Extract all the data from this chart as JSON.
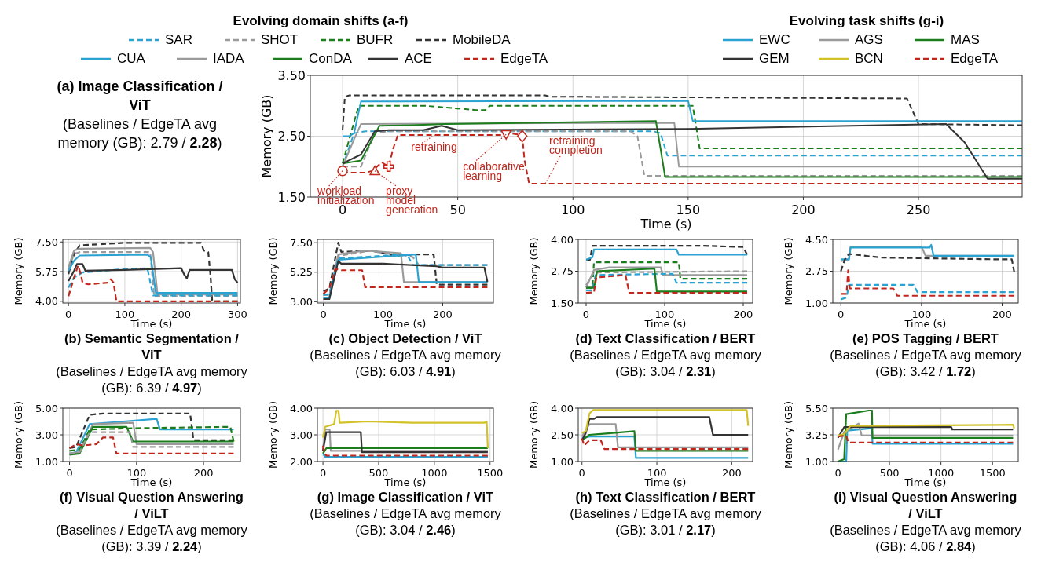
{
  "chart_data": [
    {
      "type": "line",
      "title": "(a) Image Classification / ViT",
      "subtitle": "(Baselines / EdgeTA avg memory (GB): 2.79 / 2.28)",
      "xlabel": "Time (s)",
      "ylabel": "Memory (GB)",
      "legend": "top",
      "legend_title": "Evolving domain shifts (a-f)",
      "grid": true,
      "xlim": [
        -14,
        295
      ],
      "xticks": [
        0,
        50,
        100,
        150,
        200,
        250
      ],
      "ylim": [
        1.5,
        3.5
      ],
      "yticks": [
        {
          "value": 1.5,
          "label": "1.50"
        },
        {
          "value": 2.5,
          "label": "2.50"
        },
        {
          "value": 3.5,
          "label": "3.50"
        }
      ],
      "series": [
        {
          "name": "SAR",
          "color": "#2aa3d2",
          "line_style": "dashed",
          "x": [
            0,
            5,
            10,
            135,
            138,
            141,
            295
          ],
          "values": [
            2.0,
            2.55,
            2.58,
            2.58,
            2.55,
            2.18,
            2.18
          ]
        },
        {
          "name": "SHOT",
          "color": "#9a9a9a",
          "line_style": "dashed",
          "x": [
            0,
            8,
            14,
            20,
            125,
            128,
            131,
            295
          ],
          "values": [
            2.0,
            2.0,
            2.55,
            2.58,
            2.58,
            2.5,
            1.85,
            1.85
          ]
        },
        {
          "name": "BUFR",
          "color": "#1b7d1b",
          "line_style": "dashed",
          "x": [
            0,
            4,
            7,
            36,
            58,
            62,
            64,
            152,
            155,
            295
          ],
          "values": [
            2.05,
            2.6,
            3.0,
            3.0,
            2.93,
            2.93,
            3.0,
            3.0,
            2.3,
            2.3
          ]
        },
        {
          "name": "MobileDA",
          "color": "#333333",
          "line_style": "dashed",
          "x": [
            0,
            1,
            3,
            88,
            90,
            245,
            250,
            295
          ],
          "values": [
            2.6,
            3.15,
            3.17,
            3.17,
            3.15,
            3.12,
            2.7,
            2.68
          ]
        },
        {
          "name": "CUA",
          "color": "#2aa3d2",
          "line_style": "solid",
          "x": [
            0,
            3,
            5,
            8,
            150,
            152,
            295
          ],
          "values": [
            2.5,
            2.5,
            2.55,
            3.07,
            3.08,
            2.75,
            2.75
          ]
        },
        {
          "name": "IADA",
          "color": "#9a9a9a",
          "line_style": "solid",
          "x": [
            0,
            5,
            8,
            144,
            146,
            295
          ],
          "values": [
            2.0,
            2.45,
            2.7,
            2.72,
            2.0,
            2.0
          ]
        },
        {
          "name": "ConDA",
          "color": "#1b7d1b",
          "line_style": "solid",
          "x": [
            0,
            8,
            16,
            30,
            45,
            136,
            138,
            140,
            295
          ],
          "values": [
            2.05,
            2.1,
            2.67,
            2.68,
            2.7,
            2.75,
            2.3,
            1.83,
            1.83
          ]
        },
        {
          "name": "ACE",
          "color": "#333333",
          "line_style": "solid",
          "x": [
            0,
            8,
            14,
            20,
            35,
            43,
            50,
            150,
            262,
            270,
            280,
            295
          ],
          "values": [
            2.05,
            2.2,
            2.58,
            2.6,
            2.6,
            2.67,
            2.6,
            2.62,
            2.7,
            2.4,
            1.8,
            1.8
          ]
        },
        {
          "name": "EdgeTA",
          "color": "#c0261c",
          "line_style": "dashed",
          "x": [
            0,
            2,
            10,
            13,
            15,
            17,
            19,
            20,
            22,
            24,
            70,
            72,
            76,
            78,
            79,
            81,
            295
          ],
          "values": [
            1.93,
            1.9,
            1.9,
            1.93,
            2.0,
            2.07,
            2.02,
            2.0,
            2.3,
            2.52,
            2.52,
            2.55,
            2.53,
            2.5,
            2.1,
            1.72,
            1.72
          ]
        },
        {
          "type": "scatter",
          "color": "#c0261c",
          "x": [
            0,
            14,
            20,
            71,
            78
          ],
          "values": [
            1.93,
            1.93,
            2.0,
            2.53,
            2.5
          ]
        }
      ],
      "annotations": [
        {
          "text": "workload initialization",
          "x": 0,
          "y": 1.93
        },
        {
          "text": "proxy model generation",
          "x": 14,
          "y": 1.93
        },
        {
          "text": "retraining",
          "x": 40,
          "y": 2.52
        },
        {
          "text": "collaborative learning",
          "x": 71,
          "y": 2.53
        },
        {
          "text": "retraining completion",
          "x": 88,
          "y": 1.72
        }
      ]
    },
    {
      "type": "line",
      "title": "(b) Semantic Segmentation / ViT",
      "subtitle": "(Baselines / EdgeTA avg memory (GB): 6.39 / 4.97)",
      "xlabel": "Time (s)",
      "ylabel": "Memory (GB)",
      "grid": true,
      "xlim": [
        -10,
        305
      ],
      "xticks": [
        0,
        100,
        200,
        300
      ],
      "ylim": [
        3.9,
        7.65
      ],
      "yticks": [
        {
          "value": 4,
          "label": "4.00"
        },
        {
          "value": 5.75,
          "label": "5.75"
        },
        {
          "value": 7.5,
          "label": "7.50"
        }
      ],
      "series": [
        {
          "color": "#333333",
          "line_style": "dashed",
          "x": [
            0,
            10,
            20,
            100,
            235,
            240,
            248,
            252,
            255,
            300
          ],
          "values": [
            5.6,
            6.8,
            7.3,
            7.45,
            7.45,
            7.0,
            6.9,
            5.5,
            4.0,
            4.0
          ]
        },
        {
          "color": "#9a9a9a",
          "line_style": "solid",
          "x": [
            0,
            10,
            20,
            145,
            150,
            158,
            300
          ],
          "values": [
            6.0,
            7.0,
            7.1,
            7.15,
            6.9,
            4.4,
            4.4
          ]
        },
        {
          "color": "#9a9a9a",
          "line_style": "dashed",
          "x": [
            0,
            10,
            20,
            145,
            152,
            300
          ],
          "values": [
            5.9,
            6.8,
            6.9,
            6.9,
            4.3,
            4.3
          ]
        },
        {
          "color": "#2aa3d2",
          "line_style": "solid",
          "x": [
            0,
            10,
            20,
            140,
            146,
            155,
            300
          ],
          "values": [
            5.8,
            6.4,
            6.7,
            6.75,
            6.6,
            4.5,
            4.5
          ]
        },
        {
          "color": "#2aa3d2",
          "line_style": "dashed",
          "x": [
            0,
            10,
            25,
            100,
            140,
            150,
            300
          ],
          "values": [
            4.8,
            5.4,
            5.7,
            5.9,
            5.95,
            4.35,
            4.35
          ]
        },
        {
          "color": "#333333",
          "line_style": "solid",
          "x": [
            0,
            10,
            15,
            25,
            30,
            100,
            200,
            205,
            210,
            215,
            290,
            295,
            300
          ],
          "values": [
            5.2,
            5.8,
            6.2,
            6.2,
            5.8,
            5.85,
            5.95,
            5.6,
            5.35,
            5.85,
            5.85,
            5.3,
            5.1
          ]
        },
        {
          "color": "#c0261c",
          "line_style": "dashed",
          "x": [
            0,
            10,
            17,
            22,
            25,
            35,
            70,
            75,
            80,
            85,
            300
          ],
          "values": [
            4.3,
            5.4,
            6.1,
            5.6,
            5.1,
            5.0,
            5.1,
            5.3,
            5.1,
            4.0,
            4.0
          ]
        }
      ]
    },
    {
      "type": "line",
      "title": "(c) Object Detection / ViT",
      "subtitle": "(Baselines / EdgeTA avg memory (GB): 6.03 / 4.91)",
      "xlabel": "Time (s)",
      "ylabel": "Memory (GB)",
      "grid": true,
      "xlim": [
        -10,
        285
      ],
      "xticks": [
        0,
        100,
        200
      ],
      "ylim": [
        2.9,
        7.75
      ],
      "yticks": [
        {
          "value": 3,
          "label": "3.00"
        },
        {
          "value": 5.25,
          "label": "5.25"
        },
        {
          "value": 7.5,
          "label": "7.50"
        }
      ],
      "series": [
        {
          "color": "#333333",
          "line_style": "dashed",
          "x": [
            0,
            10,
            25,
            30,
            80,
            120,
            150,
            185,
            190,
            275
          ],
          "values": [
            3.8,
            4.0,
            7.5,
            6.8,
            6.9,
            6.5,
            6.6,
            6.6,
            4.3,
            4.3
          ]
        },
        {
          "color": "#9a9a9a",
          "line_style": "dashed",
          "x": [
            0,
            10,
            25,
            40,
            80,
            100,
            130,
            150,
            160,
            275
          ],
          "values": [
            3.5,
            3.5,
            6.5,
            6.6,
            6.9,
            6.7,
            6.6,
            6.4,
            5.8,
            5.8
          ]
        },
        {
          "color": "#9a9a9a",
          "line_style": "solid",
          "x": [
            0,
            10,
            25,
            70,
            130,
            135,
            275
          ],
          "values": [
            3.2,
            3.2,
            6.6,
            6.9,
            6.7,
            4.5,
            4.5
          ]
        },
        {
          "color": "#2aa3d2",
          "line_style": "dashed",
          "x": [
            0,
            10,
            25,
            140,
            150,
            275
          ],
          "values": [
            3.5,
            3.6,
            6.3,
            6.6,
            5.8,
            5.8
          ]
        },
        {
          "color": "#2aa3d2",
          "line_style": "solid",
          "x": [
            0,
            10,
            25,
            155,
            160,
            275
          ],
          "values": [
            3.3,
            3.3,
            6.2,
            6.6,
            4.5,
            4.5
          ]
        },
        {
          "color": "#333333",
          "line_style": "solid",
          "x": [
            0,
            10,
            25,
            30,
            100,
            190,
            200,
            270,
            275
          ],
          "values": [
            3.2,
            3.2,
            6.1,
            5.9,
            5.9,
            5.7,
            5.6,
            5.6,
            4.5
          ]
        },
        {
          "color": "#c0261c",
          "line_style": "dashed",
          "x": [
            0,
            10,
            20,
            30,
            65,
            70,
            275
          ],
          "values": [
            3.6,
            4.0,
            5.5,
            5.4,
            5.4,
            4.1,
            4.1
          ]
        }
      ]
    },
    {
      "type": "line",
      "title": "(d) Text Classification / BERT",
      "subtitle": "(Baselines / EdgeTA avg memory (GB): 3.04 / 2.31)",
      "xlabel": "Time (s)",
      "ylabel": "Memory (GB)",
      "grid": true,
      "xlim": [
        -10,
        212
      ],
      "xticks": [
        0,
        100,
        200
      ],
      "ylim": [
        1.5,
        4.0
      ],
      "yticks": [
        {
          "value": 1.5,
          "label": "1.50"
        },
        {
          "value": 2.75,
          "label": "2.75"
        },
        {
          "value": 4,
          "label": "4.00"
        }
      ],
      "series": [
        {
          "color": "#333333",
          "line_style": "dashed",
          "x": [
            0,
            5,
            8,
            150,
            200,
            205
          ],
          "values": [
            3.2,
            3.2,
            3.75,
            3.75,
            3.7,
            3.4
          ]
        },
        {
          "color": "#2aa3d2",
          "line_style": "solid",
          "x": [
            0,
            8,
            10,
            115,
            118,
            205
          ],
          "values": [
            3.2,
            3.3,
            3.6,
            3.6,
            3.4,
            3.4
          ]
        },
        {
          "color": "#1b7d1b",
          "line_style": "dashed",
          "x": [
            0,
            8,
            10,
            118,
            120,
            205
          ],
          "values": [
            2.1,
            2.1,
            3.1,
            3.1,
            2.45,
            2.45
          ]
        },
        {
          "color": "#9a9a9a",
          "line_style": "dashed",
          "x": [
            0,
            10,
            205
          ],
          "values": [
            2.2,
            2.7,
            2.75
          ]
        },
        {
          "color": "#9a9a9a",
          "line_style": "solid",
          "x": [
            0,
            10,
            30,
            95,
            98,
            205
          ],
          "values": [
            2.1,
            2.8,
            2.9,
            2.9,
            2.6,
            2.6
          ]
        },
        {
          "color": "#2aa3d2",
          "line_style": "dashed",
          "x": [
            0,
            8,
            12,
            110,
            115,
            205
          ],
          "values": [
            2.0,
            2.0,
            2.6,
            2.65,
            2.3,
            2.3
          ]
        },
        {
          "color": "#1b7d1b",
          "line_style": "solid",
          "x": [
            0,
            10,
            14,
            87,
            90,
            205
          ],
          "values": [
            2.1,
            2.1,
            2.75,
            2.85,
            1.95,
            1.95
          ]
        },
        {
          "color": "#c0261c",
          "line_style": "dashed",
          "x": [
            0,
            10,
            13,
            50,
            55,
            205
          ],
          "values": [
            1.9,
            1.92,
            2.5,
            2.6,
            1.9,
            1.9
          ]
        }
      ]
    },
    {
      "type": "line",
      "title": "(e) POS Tagging / BERT",
      "subtitle": "(Baselines / EdgeTA avg memory (GB): 3.42 / 1.72)",
      "xlabel": "Time (s)",
      "ylabel": "Memory (GB)",
      "grid": true,
      "xlim": [
        -10,
        220
      ],
      "xticks": [
        0,
        100,
        200
      ],
      "ylim": [
        1.0,
        4.5
      ],
      "yticks": [
        {
          "value": 1,
          "label": "1.00"
        },
        {
          "value": 2.75,
          "label": "2.75"
        },
        {
          "value": 4.5,
          "label": "4.50"
        }
      ],
      "series": [
        {
          "color": "#9a9a9a",
          "line_style": "solid",
          "x": [
            0,
            10,
            12,
            100,
            105,
            215
          ],
          "values": [
            3.3,
            3.4,
            4.1,
            4.1,
            3.6,
            3.6
          ]
        },
        {
          "color": "#2aa3d2",
          "line_style": "solid",
          "x": [
            0,
            10,
            12,
            110,
            112,
            115,
            215
          ],
          "values": [
            3.4,
            3.4,
            4.05,
            4.05,
            4.2,
            3.6,
            3.6
          ]
        },
        {
          "color": "#333333",
          "line_style": "dashed",
          "x": [
            0,
            5,
            10,
            50,
            200,
            212,
            215
          ],
          "values": [
            2.75,
            3.4,
            3.7,
            3.5,
            3.4,
            3.4,
            2.7
          ]
        },
        {
          "color": "#2aa3d2",
          "line_style": "dashed",
          "x": [
            0,
            7,
            10,
            90,
            95,
            215
          ],
          "values": [
            1.2,
            1.3,
            2.0,
            2.0,
            1.6,
            1.6
          ]
        },
        {
          "color": "#c0261c",
          "line_style": "dashed",
          "x": [
            0,
            7,
            9,
            11,
            65,
            70,
            215
          ],
          "values": [
            1.5,
            1.5,
            2.8,
            1.8,
            1.8,
            1.4,
            1.4
          ]
        }
      ]
    },
    {
      "type": "line",
      "title": "(f) Visual Question Answering / ViLT",
      "subtitle": "(Baselines / EdgeTA avg memory (GB): 3.39 / 2.24)",
      "xlabel": "Time (s)",
      "ylabel": "Memory (GB)",
      "grid": true,
      "xlim": [
        -10,
        255
      ],
      "xticks": [
        0,
        100,
        200
      ],
      "ylim": [
        1.0,
        5.0
      ],
      "yticks": [
        {
          "value": 1,
          "label": "1.00"
        },
        {
          "value": 3,
          "label": "3.00"
        },
        {
          "value": 5,
          "label": "5.00"
        }
      ],
      "series": [
        {
          "color": "#333333",
          "line_style": "dashed",
          "x": [
            0,
            10,
            30,
            50,
            180,
            185,
            245
          ],
          "values": [
            2.0,
            2.1,
            4.5,
            4.6,
            4.6,
            2.6,
            2.6
          ]
        },
        {
          "color": "#2aa3d2",
          "line_style": "solid",
          "x": [
            0,
            10,
            30,
            80,
            130,
            135,
            245
          ],
          "values": [
            1.6,
            1.7,
            3.8,
            4.0,
            4.2,
            3.4,
            3.4
          ]
        },
        {
          "color": "#9a9a9a",
          "line_style": "solid",
          "x": [
            0,
            15,
            35,
            95,
            100,
            245
          ],
          "values": [
            1.6,
            1.7,
            3.8,
            3.9,
            2.3,
            2.3
          ]
        },
        {
          "color": "#1b7d1b",
          "line_style": "dashed",
          "x": [
            0,
            15,
            30,
            100,
            240,
            245
          ],
          "values": [
            1.8,
            1.9,
            3.4,
            3.5,
            3.6,
            2.5
          ]
        },
        {
          "color": "#1b7d1b",
          "line_style": "solid",
          "x": [
            0,
            15,
            35,
            85,
            95,
            245
          ],
          "values": [
            1.5,
            1.6,
            3.6,
            3.6,
            2.5,
            2.5
          ]
        },
        {
          "color": "#9a9a9a",
          "line_style": "dashed",
          "x": [
            0,
            15,
            30,
            90,
            95,
            245
          ],
          "values": [
            1.6,
            1.7,
            3.2,
            3.2,
            2.1,
            2.1
          ]
        },
        {
          "color": "#c0261c",
          "line_style": "dashed",
          "x": [
            0,
            10,
            20,
            40,
            50,
            65,
            70,
            245
          ],
          "values": [
            2.0,
            2.3,
            2.2,
            2.3,
            2.8,
            2.8,
            1.6,
            1.6
          ]
        }
      ]
    },
    {
      "type": "line",
      "title": "(g) Image Classification / ViT",
      "subtitle": "(Baselines / EdgeTA avg memory (GB): 3.04 / 2.46)",
      "xlabel": "Time (s)",
      "ylabel": "Memory (GB)",
      "legend": "top",
      "legend_title": "Evolving task shifts (g-i)",
      "grid": true,
      "xlim": [
        -50,
        1530
      ],
      "xticks": [
        0,
        500,
        1000,
        1500
      ],
      "ylim": [
        2.0,
        4.0
      ],
      "yticks": [
        {
          "value": 2,
          "label": "2.00"
        },
        {
          "value": 3,
          "label": "3.00"
        },
        {
          "value": 4,
          "label": "4.00"
        }
      ],
      "series": [
        {
          "name": "EWC",
          "color": "#2aa3d2",
          "line_style": "solid",
          "x": [
            0,
            20,
            1480
          ],
          "values": [
            2.3,
            2.17,
            2.17
          ]
        },
        {
          "name": "AGS",
          "color": "#9a9a9a",
          "line_style": "solid",
          "x": [
            0,
            20,
            60,
            70,
            1480
          ],
          "values": [
            2.4,
            3.2,
            3.2,
            2.4,
            2.4
          ]
        },
        {
          "name": "MAS",
          "color": "#1b7d1b",
          "line_style": "solid",
          "x": [
            0,
            30,
            1480
          ],
          "values": [
            2.3,
            2.5,
            2.5
          ]
        },
        {
          "name": "GEM",
          "color": "#333333",
          "line_style": "solid",
          "x": [
            0,
            30,
            340,
            350,
            1480
          ],
          "values": [
            2.4,
            3.1,
            3.1,
            2.35,
            2.35
          ]
        },
        {
          "name": "BCN",
          "color": "#d2c227",
          "line_style": "solid",
          "x": [
            0,
            20,
            100,
            120,
            140,
            150,
            400,
            800,
            1200,
            1450,
            1470,
            1480
          ],
          "values": [
            2.9,
            3.3,
            3.4,
            3.9,
            3.9,
            3.45,
            3.5,
            3.45,
            3.45,
            3.45,
            3.5,
            2.5
          ]
        },
        {
          "name": "EdgeTA",
          "color": "#c0261c",
          "line_style": "dashed",
          "x": [
            0,
            15,
            30,
            1480
          ],
          "values": [
            2.6,
            2.3,
            2.22,
            2.22
          ]
        }
      ]
    },
    {
      "type": "line",
      "title": "(h) Text Classification / BERT",
      "subtitle": "(Baselines / EdgeTA avg memory (GB): 3.01 / 2.17)",
      "xlabel": "Time (s)",
      "ylabel": "Memory (GB)",
      "grid": true,
      "xlim": [
        -5,
        228
      ],
      "xticks": [
        0,
        100,
        200
      ],
      "ylim": [
        1.0,
        4.0
      ],
      "yticks": [
        {
          "value": 1,
          "label": "1.00"
        },
        {
          "value": 2.5,
          "label": "2.50"
        },
        {
          "value": 4,
          "label": "4.00"
        }
      ],
      "series": [
        {
          "color": "#2aa3d2",
          "line_style": "solid",
          "x": [
            0,
            10,
            70,
            72,
            222
          ],
          "values": [
            2.3,
            2.4,
            2.4,
            1.2,
            1.2
          ]
        },
        {
          "color": "#9a9a9a",
          "line_style": "solid",
          "x": [
            0,
            10,
            45,
            48,
            222
          ],
          "values": [
            2.4,
            3.1,
            3.1,
            1.8,
            1.8
          ]
        },
        {
          "color": "#1b7d1b",
          "line_style": "solid",
          "x": [
            0,
            10,
            70,
            72,
            222
          ],
          "values": [
            2.2,
            2.5,
            2.7,
            1.6,
            1.6
          ]
        },
        {
          "color": "#333333",
          "line_style": "solid",
          "x": [
            0,
            5,
            10,
            16,
            20,
            170,
            175,
            222
          ],
          "values": [
            2.2,
            2.6,
            3.4,
            3.4,
            3.5,
            3.5,
            2.5,
            2.5
          ]
        },
        {
          "color": "#d2c227",
          "line_style": "solid",
          "x": [
            0,
            5,
            10,
            15,
            220,
            222
          ],
          "values": [
            2.6,
            2.7,
            3.7,
            3.9,
            3.9,
            3.0
          ]
        },
        {
          "color": "#c0261c",
          "line_style": "dashed",
          "x": [
            0,
            3,
            10,
            25,
            30,
            222
          ],
          "values": [
            2.3,
            1.9,
            2.2,
            2.2,
            1.7,
            1.7
          ]
        }
      ]
    },
    {
      "type": "line",
      "title": "(i) Visual Question Answering / ViLT",
      "subtitle": "(Baselines / EdgeTA avg memory (GB): 4.06 / 2.84)",
      "xlabel": "Time (s)",
      "ylabel": "Memory (GB)",
      "grid": true,
      "xlim": [
        -50,
        1750
      ],
      "xticks": [
        0,
        500,
        1000,
        1500
      ],
      "ylim": [
        1.0,
        5.5
      ],
      "yticks": [
        {
          "value": 1,
          "label": "1.00"
        },
        {
          "value": 3.25,
          "label": "3.25"
        },
        {
          "value": 5.5,
          "label": "5.50"
        }
      ],
      "series": [
        {
          "color": "#2aa3d2",
          "line_style": "solid",
          "x": [
            0,
            80,
            90,
            330,
            335,
            1700
          ],
          "values": [
            1.0,
            1.0,
            3.6,
            3.8,
            2.5,
            2.5
          ]
        },
        {
          "color": "#9a9a9a",
          "line_style": "solid",
          "x": [
            0,
            60,
            200,
            230,
            1700
          ],
          "values": [
            2.0,
            3.5,
            4.2,
            3.2,
            3.2
          ]
        },
        {
          "color": "#1b7d1b",
          "line_style": "solid",
          "x": [
            0,
            60,
            80,
            300,
            330,
            335,
            1700
          ],
          "values": [
            1.0,
            1.2,
            5.0,
            5.3,
            5.3,
            3.0,
            3.0
          ]
        },
        {
          "color": "#333333",
          "line_style": "solid",
          "x": [
            0,
            60,
            1100,
            1110,
            1700
          ],
          "values": [
            3.0,
            3.9,
            3.9,
            3.7,
            3.7
          ]
        },
        {
          "color": "#d2c227",
          "line_style": "solid",
          "x": [
            0,
            60,
            120,
            1700,
            1710
          ],
          "values": [
            3.2,
            3.3,
            4.0,
            4.1,
            3.8
          ]
        },
        {
          "color": "#c0261c",
          "line_style": "dashed",
          "x": [
            0,
            80,
            100,
            1700
          ],
          "values": [
            3.1,
            3.2,
            2.6,
            2.6
          ]
        }
      ]
    }
  ]
}
